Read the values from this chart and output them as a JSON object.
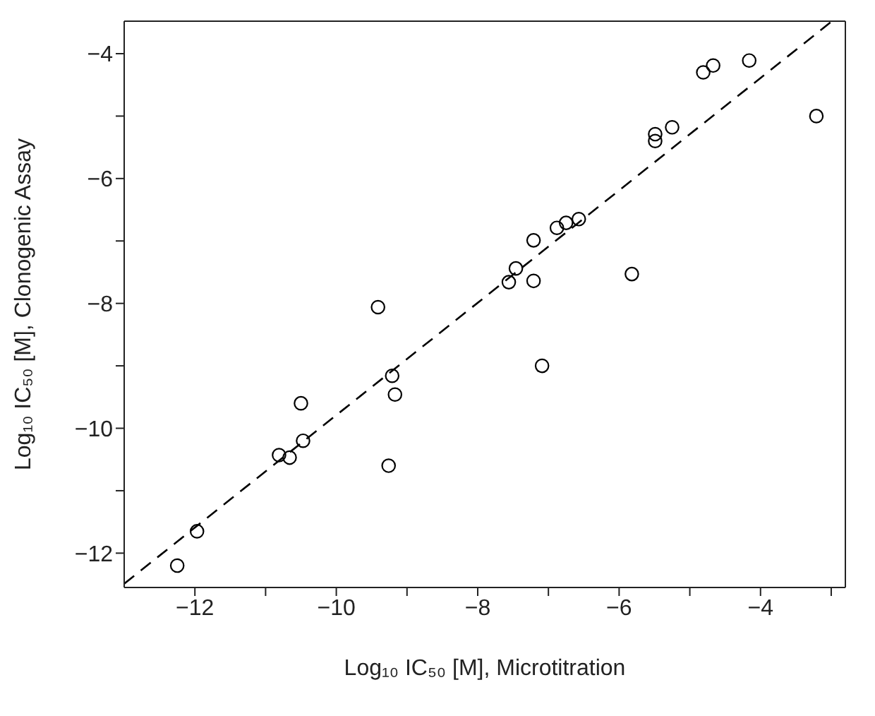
{
  "chart_data": {
    "type": "scatter",
    "xlabel": "Log₁₀ IC₅₀ [M], Microtitration",
    "ylabel": "Log₁₀ IC₅₀ [M], Clonogenic Assay",
    "xlim": [
      -13,
      -2.8
    ],
    "ylim": [
      -12.55,
      -3.48
    ],
    "xticks": [
      {
        "value": -12,
        "label": "−12"
      },
      {
        "value": -11,
        "label": null
      },
      {
        "value": -10,
        "label": "−10"
      },
      {
        "value": -9,
        "label": null
      },
      {
        "value": -8,
        "label": "−8"
      },
      {
        "value": -7,
        "label": null
      },
      {
        "value": -6,
        "label": "−6"
      },
      {
        "value": -5,
        "label": null
      },
      {
        "value": -4,
        "label": "−4"
      },
      {
        "value": -3,
        "label": null
      }
    ],
    "yticks": [
      {
        "value": -12,
        "label": "−12"
      },
      {
        "value": -11,
        "label": null
      },
      {
        "value": -10,
        "label": "−10"
      },
      {
        "value": -9,
        "label": null
      },
      {
        "value": -8,
        "label": "−8"
      },
      {
        "value": -7,
        "label": null
      },
      {
        "value": -6,
        "label": "−6"
      },
      {
        "value": -5,
        "label": null
      },
      {
        "value": -4,
        "label": "−4"
      }
    ],
    "series": [
      {
        "color": "#000000",
        "marker": "circle",
        "x": [
          -4.81,
          -4.67,
          -4.16,
          -3.21,
          -5.49,
          -5.49,
          -5.25,
          -6.57,
          -6.75,
          -6.88,
          -7.21,
          -7.46,
          -7.56,
          -7.21,
          -5.82,
          -9.41,
          -9.21,
          -9.17,
          -7.09,
          -10.5,
          -10.47,
          -10.81,
          -10.66,
          -9.26,
          -11.97,
          -12.25
        ],
        "values": [
          -4.3,
          -4.19,
          -4.11,
          -5.0,
          -5.29,
          -5.4,
          -5.18,
          -6.65,
          -6.71,
          -6.79,
          -6.99,
          -7.44,
          -7.66,
          -7.64,
          -7.53,
          -8.06,
          -9.16,
          -9.46,
          -9.0,
          -9.6,
          -10.2,
          -10.43,
          -10.47,
          -10.6,
          -11.65,
          -12.2
        ]
      },
      {
        "type": "line",
        "color": "#000000",
        "line_style": "dashed",
        "x": [
          -13,
          -3
        ],
        "values": [
          -12.49,
          -3.49
        ]
      }
    ]
  }
}
